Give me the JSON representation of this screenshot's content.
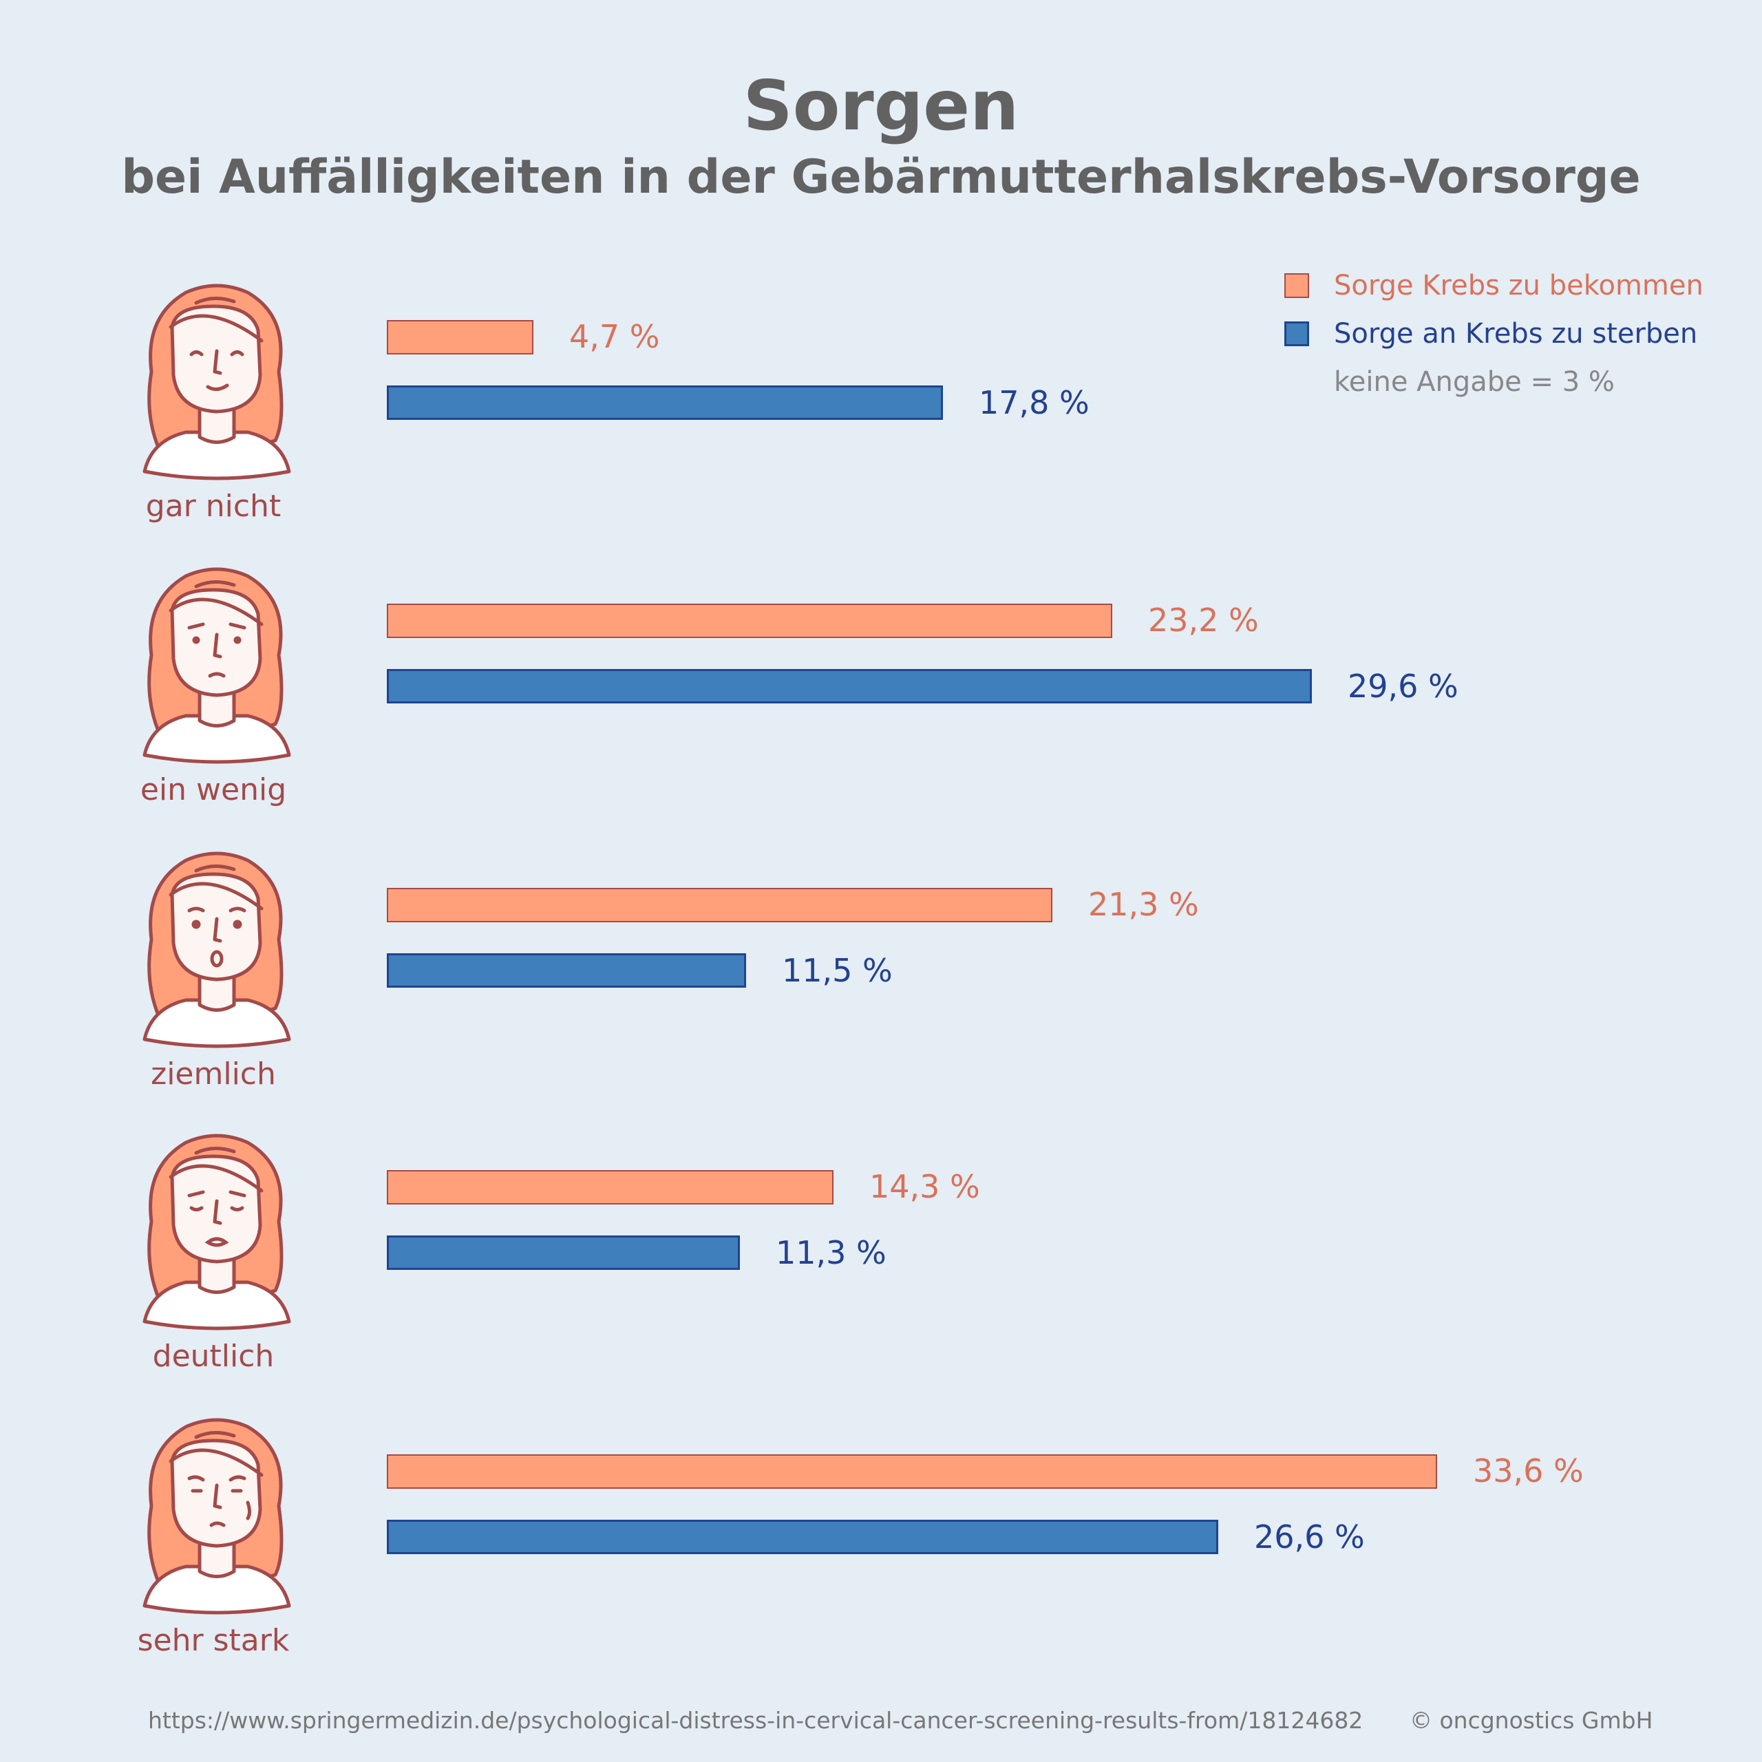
{
  "header": {
    "title": "Sorgen",
    "subtitle": "bei Auffälligkeiten in der Gebärmutterhalskrebs-Vorsorge"
  },
  "legend": {
    "items": [
      {
        "label": "Sorge Krebs zu bekommen",
        "color": "#ffa07a",
        "text_color": "#d9725a"
      },
      {
        "label": "Sorge an Krebs zu sterben",
        "color": "#3f7fbb",
        "text_color": "#23418f"
      }
    ],
    "note": "keine Angabe = 3 %"
  },
  "rows": [
    {
      "label": "gar nicht",
      "expression": "happy",
      "v1": "4,7 %",
      "v2": "17,8 %"
    },
    {
      "label": "ein wenig",
      "expression": "worried",
      "v1": "23,2 %",
      "v2": "29,6 %"
    },
    {
      "label": "ziemlich",
      "expression": "shocked",
      "v1": "21,3 %",
      "v2": "11,5 %"
    },
    {
      "label": "deutlich",
      "expression": "distressed",
      "v1": "14,3 %",
      "v2": "11,3 %"
    },
    {
      "label": "sehr stark",
      "expression": "despairing",
      "v1": "33,6 %",
      "v2": "26,6 %"
    }
  ],
  "footer": {
    "source": "https://www.springermedizin.de/psychological-distress-in-cervical-cancer-screening-results-from/18124682",
    "copyright": "© oncgnostics GmbH"
  },
  "chart_data": {
    "type": "bar",
    "orientation": "horizontal",
    "title": "Sorgen",
    "subtitle": "bei Auffälligkeiten in der Gebärmutterhalskrebs-Vorsorge",
    "categories": [
      "gar nicht",
      "ein wenig",
      "ziemlich",
      "deutlich",
      "sehr stark"
    ],
    "series": [
      {
        "name": "Sorge Krebs zu bekommen",
        "values": [
          4.7,
          23.2,
          21.3,
          14.3,
          33.6
        ],
        "color": "#ffa07a"
      },
      {
        "name": "Sorge an Krebs zu sterben",
        "values": [
          17.8,
          29.6,
          11.5,
          11.3,
          26.6
        ],
        "color": "#3f7fbb"
      }
    ],
    "unit": "%",
    "xlim": [
      0,
      33.6
    ],
    "xlabel": "",
    "ylabel": "",
    "grid": false,
    "legend_position": "top-right",
    "annotations": [
      "keine Angabe = 3 %"
    ]
  }
}
